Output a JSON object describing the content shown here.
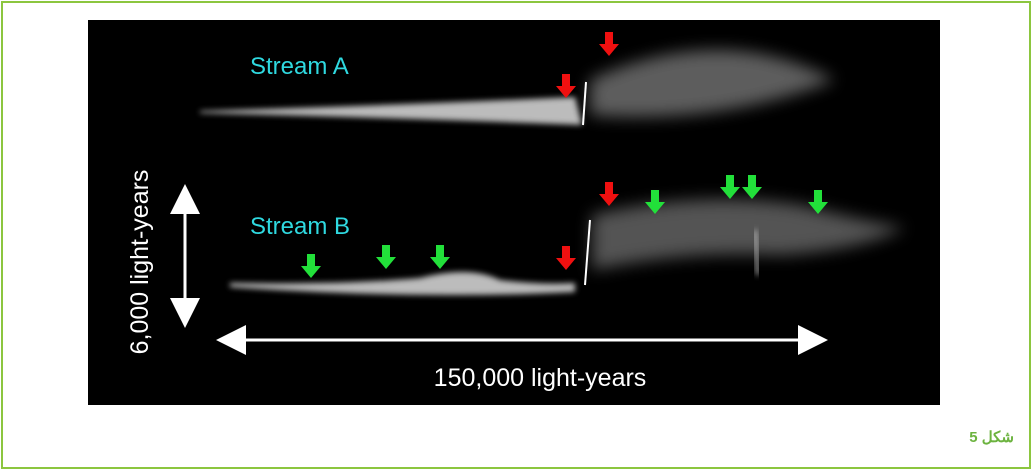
{
  "figure": {
    "stream_a_label": "Stream A",
    "stream_b_label": "Stream B",
    "vertical_scale": "6,000 light-years",
    "horizontal_scale": "150,000 light-years"
  },
  "caption": "شكل 5"
}
